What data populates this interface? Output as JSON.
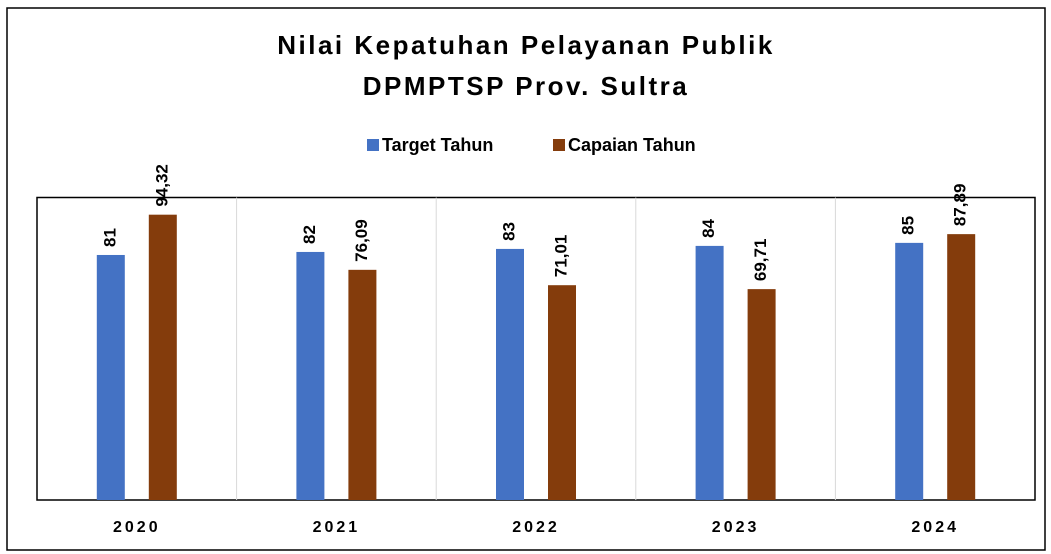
{
  "chart_data": {
    "type": "bar",
    "title": "Nilai Kepatuhan Pelayanan Publik",
    "subtitle": "DPMPTSP Prov. Sultra",
    "categories": [
      "2020",
      "2021",
      "2022",
      "2023",
      "2024"
    ],
    "series": [
      {
        "name": "Target Tahun",
        "color": "#4472c4",
        "values": [
          81,
          82,
          83,
          84,
          85
        ]
      },
      {
        "name": "Capaian Tahun",
        "color": "#843c0c",
        "values": [
          94.32,
          76.09,
          71.01,
          69.71,
          87.89
        ],
        "value_labels": [
          "94,32",
          "76,09",
          "71,01",
          "69,71",
          "87,89"
        ]
      }
    ],
    "ylim": [
      0,
      100
    ],
    "legend": "top"
  }
}
